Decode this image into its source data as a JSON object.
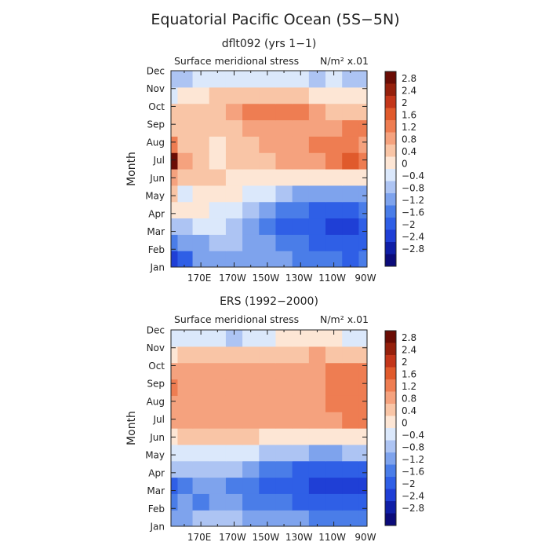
{
  "header": {
    "title": "Equatorial Pacific Ocean (5S−5N)"
  },
  "chart_data": [
    {
      "type": "heatmap",
      "title": "dflt092 (yrs 1−1)",
      "variable_label": "Surface meridional stress",
      "units_label": "N/m² x.01",
      "ylabel": "Month",
      "months": [
        "Jan",
        "Feb",
        "Mar",
        "Apr",
        "May",
        "Jun",
        "Jul",
        "Aug",
        "Sep",
        "Oct",
        "Nov",
        "Dec"
      ],
      "xtick_labels": [
        "170E",
        "170W",
        "150W",
        "130W",
        "110W",
        "90W"
      ],
      "xtick_lons": [
        170,
        190,
        210,
        230,
        250,
        270
      ],
      "xlim": [
        152,
        270
      ],
      "grid_lons": [
        152,
        160,
        170,
        180,
        190,
        200,
        210,
        220,
        230,
        240,
        250,
        260,
        270
      ],
      "values": [
        [
          -2.3,
          -1.8,
          -1.2,
          -1.0,
          -1.0,
          -1.0,
          -1.1,
          -1.2,
          -1.3,
          -1.5,
          -1.6,
          -1.7,
          -1.6
        ],
        [
          -1.6,
          -1.2,
          -0.9,
          -0.8,
          -0.8,
          -0.9,
          -1.0,
          -1.3,
          -1.5,
          -1.7,
          -1.8,
          -1.9,
          -1.8
        ],
        [
          -0.8,
          -0.5,
          -0.4,
          -0.4,
          -0.6,
          -0.9,
          -1.3,
          -1.7,
          -1.9,
          -2.0,
          -2.1,
          -2.2,
          -2.0
        ],
        [
          0.3,
          0.2,
          0.1,
          -0.1,
          -0.3,
          -0.7,
          -1.0,
          -1.3,
          -1.6,
          -1.7,
          -1.8,
          -1.7,
          -1.6
        ],
        [
          0.5,
          -0.4,
          0.3,
          0.2,
          0.1,
          -0.1,
          -0.4,
          -0.8,
          -1.1,
          -1.2,
          -1.2,
          -1.1,
          -1.0
        ],
        [
          0.9,
          0.5,
          0.4,
          0.4,
          0.3,
          0.2,
          0.2,
          0.1,
          0.0,
          0.0,
          0.1,
          0.2,
          0.3
        ],
        [
          2.8,
          0.9,
          0.5,
          0.3,
          0.5,
          0.6,
          0.7,
          0.8,
          0.9,
          1.1,
          1.4,
          1.6,
          1.3
        ],
        [
          1.3,
          0.7,
          0.5,
          0.3,
          0.5,
          0.6,
          0.8,
          0.9,
          1.0,
          1.2,
          1.3,
          1.2,
          1.1
        ],
        [
          0.6,
          0.5,
          0.5,
          0.4,
          0.6,
          0.8,
          0.9,
          0.9,
          0.9,
          1.0,
          1.1,
          1.2,
          1.2
        ],
        [
          0.4,
          0.4,
          0.5,
          0.6,
          0.9,
          1.2,
          1.5,
          1.5,
          1.2,
          0.8,
          0.6,
          0.5,
          0.5
        ],
        [
          -0.2,
          0.1,
          0.3,
          0.4,
          0.5,
          0.6,
          0.6,
          0.5,
          0.4,
          0.3,
          0.2,
          0.2,
          0.3
        ],
        [
          -0.8,
          -0.6,
          -0.4,
          -0.3,
          -0.3,
          -0.2,
          -0.1,
          -0.2,
          -0.4,
          -0.5,
          -0.3,
          -0.5,
          -0.6
        ]
      ],
      "levels": [
        -2.8,
        -2.4,
        -2.0,
        -1.6,
        -1.2,
        -0.8,
        -0.4,
        0.0,
        0.4,
        0.8,
        1.2,
        1.6,
        2.0,
        2.4,
        2.8
      ],
      "colorbar_labels": [
        "2.8",
        "2.4",
        "2",
        "1.6",
        "1.2",
        "0.8",
        "0.4",
        "0",
        "−0.4",
        "−0.8",
        "−1.2",
        "−1.6",
        "−2",
        "−2.4",
        "−2.8"
      ]
    },
    {
      "type": "heatmap",
      "title": "ERS (1992−2000)",
      "variable_label": "Surface meridional stress",
      "units_label": "N/m² x.01",
      "ylabel": "Month",
      "months": [
        "Jan",
        "Feb",
        "Mar",
        "Apr",
        "May",
        "Jun",
        "Jul",
        "Aug",
        "Sep",
        "Oct",
        "Nov",
        "Dec"
      ],
      "xtick_labels": [
        "170E",
        "170W",
        "150W",
        "130W",
        "110W",
        "90W"
      ],
      "xtick_lons": [
        170,
        190,
        210,
        230,
        250,
        270
      ],
      "xlim": [
        152,
        270
      ],
      "grid_lons": [
        152,
        160,
        170,
        180,
        190,
        200,
        210,
        220,
        230,
        240,
        250,
        260,
        270
      ],
      "values": [
        [
          -1.2,
          -0.9,
          -0.8,
          -0.7,
          -0.8,
          -0.9,
          -1.0,
          -1.1,
          -1.2,
          -1.3,
          -1.4,
          -1.5,
          -1.4
        ],
        [
          -1.5,
          -1.2,
          -1.3,
          -1.1,
          -1.2,
          -1.4,
          -1.5,
          -1.6,
          -1.7,
          -1.8,
          -1.9,
          -2.0,
          -1.9
        ],
        [
          -1.8,
          -1.3,
          -1.2,
          -1.0,
          -1.3,
          -1.6,
          -1.7,
          -1.8,
          -2.0,
          -2.2,
          -2.3,
          -2.4,
          -2.2
        ],
        [
          -0.6,
          -0.5,
          -0.6,
          -0.5,
          -0.7,
          -1.0,
          -1.3,
          -1.5,
          -1.7,
          -1.8,
          -1.9,
          -1.8,
          -1.7
        ],
        [
          -0.2,
          -0.2,
          -0.3,
          -0.3,
          -0.3,
          -0.4,
          -0.5,
          -0.6,
          -0.8,
          -0.9,
          -0.9,
          -0.8,
          -0.7
        ],
        [
          0.3,
          0.4,
          0.5,
          0.5,
          0.4,
          0.4,
          0.3,
          0.3,
          0.2,
          0.2,
          0.1,
          0.1,
          0.1
        ],
        [
          0.8,
          0.9,
          1.0,
          0.9,
          0.8,
          0.8,
          0.9,
          0.9,
          0.9,
          1.0,
          1.1,
          1.2,
          1.2
        ],
        [
          1.1,
          1.0,
          1.0,
          1.0,
          0.9,
          1.0,
          1.0,
          1.1,
          1.0,
          1.1,
          1.2,
          1.4,
          1.3
        ],
        [
          1.2,
          1.0,
          0.9,
          0.9,
          1.0,
          1.0,
          0.9,
          1.1,
          1.1,
          1.0,
          1.2,
          1.3,
          1.4
        ],
        [
          0.8,
          0.9,
          0.9,
          0.8,
          0.8,
          0.9,
          0.9,
          0.9,
          1.0,
          1.1,
          1.2,
          1.2,
          1.3
        ],
        [
          0.3,
          0.4,
          0.5,
          0.5,
          0.4,
          0.4,
          0.6,
          0.5,
          0.5,
          0.8,
          0.6,
          0.6,
          0.5
        ],
        [
          -0.1,
          -0.2,
          -0.3,
          -0.4,
          -0.5,
          -0.4,
          -0.2,
          0.0,
          0.1,
          0.1,
          0.0,
          -0.2,
          -0.1
        ]
      ],
      "levels": [
        -2.8,
        -2.4,
        -2.0,
        -1.6,
        -1.2,
        -0.8,
        -0.4,
        0.0,
        0.4,
        0.8,
        1.2,
        1.6,
        2.0,
        2.4,
        2.8
      ],
      "colorbar_labels": [
        "2.8",
        "2.4",
        "2",
        "1.6",
        "1.2",
        "0.8",
        "0.4",
        "0",
        "−0.4",
        "−0.8",
        "−1.2",
        "−1.6",
        "−2",
        "−2.4",
        "−2.8"
      ]
    }
  ],
  "colors": {
    "palette": [
      "#0b0b7a",
      "#0f1ea6",
      "#1f3fd6",
      "#2f5fe6",
      "#4a7de8",
      "#7ea3ed",
      "#adc4f3",
      "#dbe8fb",
      "#fde6d5",
      "#f9c5a6",
      "#f5a27e",
      "#ee7d52",
      "#e05a2c",
      "#c3361a",
      "#95200c",
      "#6b0d05"
    ],
    "frame": "#222222"
  }
}
